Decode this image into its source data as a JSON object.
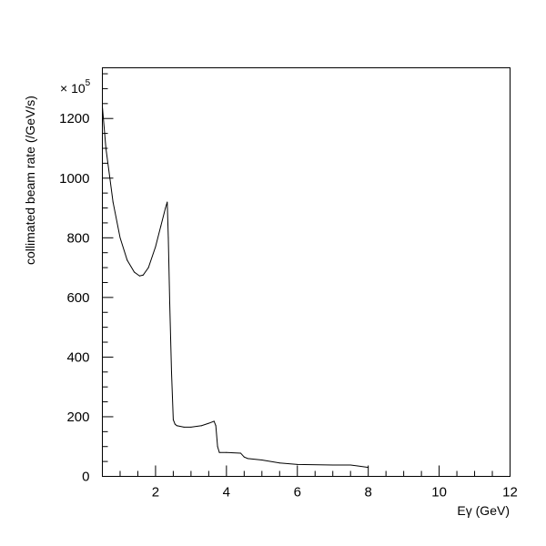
{
  "chart_data": {
    "type": "line",
    "title": "",
    "xlabel": "Eγ (GeV)",
    "ylabel": "collimated beam rate (/GeV/s)",
    "y_multiplier": "× 10",
    "y_multiplier_exp": "5",
    "xlim": [
      0.5,
      12
    ],
    "ylim": [
      0,
      1370
    ],
    "x_ticks": [
      2,
      4,
      6,
      8,
      10,
      12
    ],
    "y_ticks": [
      0,
      200,
      400,
      600,
      800,
      1000,
      1200
    ],
    "grid": false,
    "series": [
      {
        "color": "#000000",
        "x": [
          0.5,
          0.6,
          0.8,
          1.0,
          1.2,
          1.4,
          1.55,
          1.65,
          1.8,
          2.0,
          2.15,
          2.28,
          2.33,
          2.36,
          2.4,
          2.45,
          2.5,
          2.55,
          2.6,
          2.8,
          3.0,
          3.3,
          3.5,
          3.65,
          3.7,
          3.75,
          3.8,
          4.0,
          4.4,
          4.5,
          4.6,
          5.0,
          5.5,
          6.0,
          7.0,
          7.5,
          7.7,
          8.0
        ],
        "y": [
          1240,
          1100,
          920,
          800,
          725,
          685,
          672,
          675,
          700,
          770,
          840,
          900,
          920,
          800,
          580,
          350,
          190,
          175,
          170,
          165,
          165,
          170,
          178,
          185,
          170,
          100,
          80,
          80,
          78,
          65,
          60,
          55,
          45,
          40,
          38,
          38,
          35,
          30
        ]
      }
    ]
  }
}
